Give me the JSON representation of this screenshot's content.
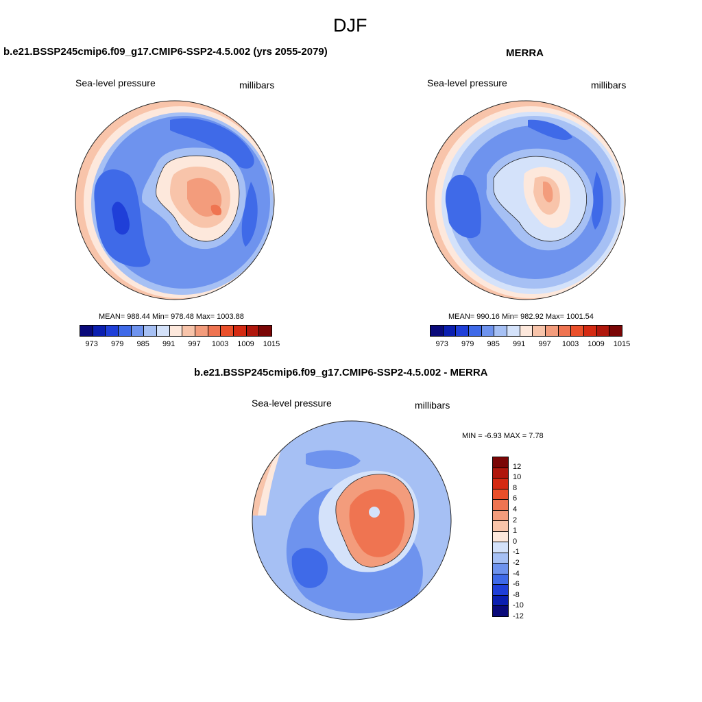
{
  "figure": {
    "title": "DJF"
  },
  "panel_model": {
    "title": "b.e21.BSSP245cmip6.f09_g17.CMIP6-SSP2-4.5.002 (yrs 2055-2079)",
    "left_label": "Sea-level pressure",
    "right_label": "millibars",
    "stats": "MEAN= 988.44  Min= 978.48  Max= 1003.88",
    "colorbar_ticks": [
      "973",
      "979",
      "985",
      "991",
      "997",
      "1003",
      "1009",
      "1015"
    ]
  },
  "panel_merra": {
    "title": "MERRA",
    "left_label": "Sea-level pressure",
    "right_label": "millibars",
    "stats": "MEAN= 990.16  Min= 982.92  Max= 1001.54",
    "colorbar_ticks": [
      "973",
      "979",
      "985",
      "991",
      "997",
      "1003",
      "1009",
      "1015"
    ]
  },
  "panel_diff": {
    "title": "b.e21.BSSP245cmip6.f09_g17.CMIP6-SSP2-4.5.002 - MERRA",
    "left_label": "Sea-level pressure",
    "right_label": "millibars",
    "stats": "MIN =  -6.93 MAX =   7.78",
    "colorbar_ticks": [
      "12",
      "10",
      "8",
      "6",
      "4",
      "2",
      "1",
      "0",
      "-1",
      "-2",
      "-4",
      "-6",
      "-8",
      "-10",
      "-12"
    ]
  },
  "colors": {
    "abs_scale": [
      "#0a0a7a",
      "#0b1fb0",
      "#1f3fd8",
      "#3f6ae8",
      "#6e93ee",
      "#a6c0f4",
      "#d4e2fa",
      "#fde8dc",
      "#f8c4aa",
      "#f39c7c",
      "#ef7451",
      "#ea4f2a",
      "#d42a12",
      "#b0170c",
      "#7a0606"
    ],
    "diff_scale": [
      "#7a0606",
      "#b0170c",
      "#d42a12",
      "#ea4f2a",
      "#ef7451",
      "#f39c7c",
      "#f8c4aa",
      "#fde8dc",
      "#d4e2fa",
      "#a6c0f4",
      "#6e93ee",
      "#3f6ae8",
      "#1f3fd8",
      "#0b1fb0",
      "#0a0a7a"
    ]
  }
}
